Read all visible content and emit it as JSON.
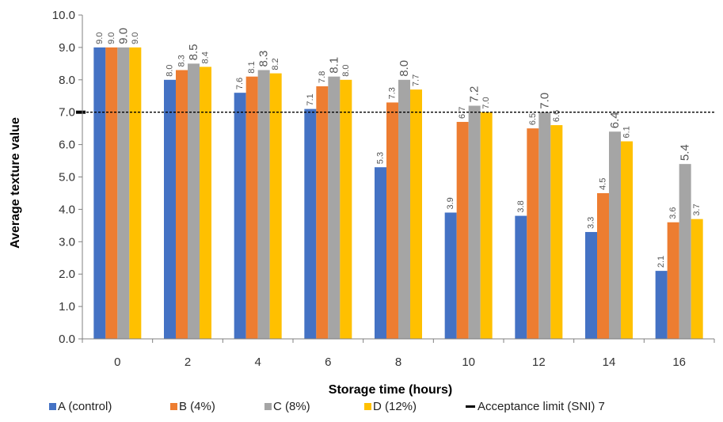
{
  "chart_data": {
    "type": "bar",
    "xlabel": "Storage time (hours)",
    "ylabel": "Average texture value",
    "ylim": [
      0,
      10
    ],
    "yticks": [
      "0.0",
      "1.0",
      "2.0",
      "3.0",
      "4.0",
      "5.0",
      "6.0",
      "7.0",
      "8.0",
      "9.0",
      "10.0"
    ],
    "categories": [
      "0",
      "2",
      "4",
      "6",
      "8",
      "10",
      "12",
      "14",
      "16"
    ],
    "series": [
      {
        "name": "A (control)",
        "color": "#4472C4",
        "values": [
          9.0,
          8.0,
          7.6,
          7.1,
          5.3,
          3.9,
          3.8,
          3.3,
          2.1
        ],
        "labels": [
          "9.0",
          "8.0",
          "7.6",
          "7.1",
          "5.3",
          "3.9",
          "3.8",
          "3.3",
          "2.1"
        ]
      },
      {
        "name": "B (4%)",
        "color": "#ED7D31",
        "values": [
          9.0,
          8.3,
          8.1,
          7.8,
          7.3,
          6.7,
          6.5,
          4.5,
          3.6
        ],
        "labels": [
          "9.0",
          "8.3",
          "8.1",
          "7.8",
          "7.3",
          "6.7",
          "6.5",
          "4.5",
          "3.6"
        ]
      },
      {
        "name": "C (8%)",
        "color": "#A5A5A5",
        "values": [
          9.0,
          8.5,
          8.3,
          8.1,
          8.0,
          7.2,
          7.0,
          6.4,
          5.4
        ],
        "labels": [
          "9.0",
          "8.5",
          "8.3",
          "8.1",
          "8.0",
          "7.2",
          "7.0",
          "6.4",
          "5.4"
        ]
      },
      {
        "name": "D (12%)",
        "color": "#FFC000",
        "values": [
          9.0,
          8.4,
          8.2,
          8.0,
          7.7,
          7.0,
          6.6,
          6.1,
          3.7
        ],
        "labels": [
          "9.0",
          "8.4",
          "8.2",
          "8.0",
          "7.7",
          "7.0",
          "6.6",
          "6.1",
          "3.7"
        ]
      }
    ],
    "reference_line": {
      "name": "Acceptance limit  (SNI) 7",
      "value": 7,
      "style": "dashed",
      "color": "#000000"
    },
    "legend_position": "bottom",
    "grid": false
  }
}
